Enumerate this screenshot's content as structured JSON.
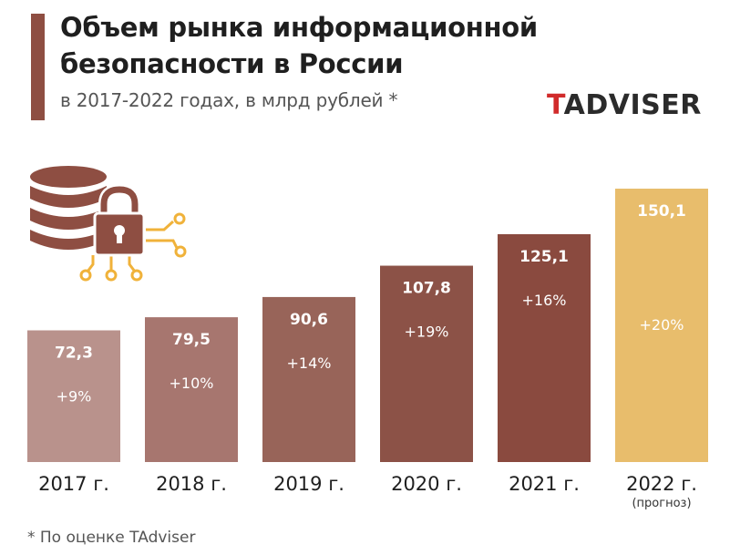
{
  "header": {
    "title": "Объем рынка информационной\nбезопасности в России",
    "subtitle": "в 2017-2022 годах, в млрд рублей *",
    "logo_prefix": "T",
    "logo_rest": "ADVISER"
  },
  "footnote": "* По оценке TAdviser",
  "icon": "database-lock-icon",
  "colors": {
    "accent": "#8e4e42",
    "logo_red": "#d12b2b",
    "icon_gold": "#f0b23a"
  },
  "chart_data": {
    "type": "bar",
    "categories": [
      "2017 г.",
      "2018 г.",
      "2019 г.",
      "2020 г.",
      "2021 г.",
      "2022 г."
    ],
    "category_notes": [
      "",
      "",
      "",
      "",
      "",
      "(прогноз)"
    ],
    "values": [
      72.3,
      79.5,
      90.6,
      107.8,
      125.1,
      150.1
    ],
    "value_labels": [
      "72,3",
      "79,5",
      "90,6",
      "107,8",
      "125,1",
      "150,1"
    ],
    "growth_labels": [
      "+9%",
      "+10%",
      "+14%",
      "+19%",
      "+16%",
      "+20%"
    ],
    "bar_colors": [
      "#b9928c",
      "#a7766f",
      "#986459",
      "#8c5247",
      "#8a4a3f",
      "#e8bd6c"
    ],
    "ylim": [
      0,
      150.1
    ],
    "grid": false,
    "legend": false
  }
}
